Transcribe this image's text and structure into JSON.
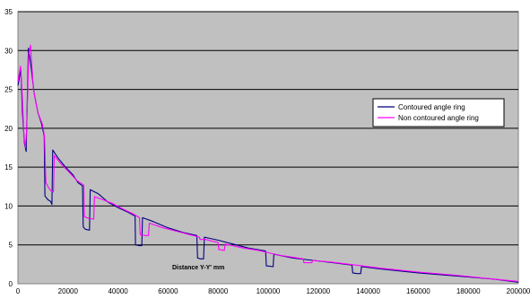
{
  "chart_data": {
    "type": "line",
    "title": "",
    "xlabel": "Distance Y-Y' mm",
    "ylabel": "",
    "xlim": [
      0,
      200000
    ],
    "ylim": [
      0,
      35
    ],
    "xticks": [
      0,
      20000,
      40000,
      60000,
      80000,
      100000,
      120000,
      140000,
      160000,
      180000,
      200000
    ],
    "yticks": [
      0,
      5,
      10,
      15,
      20,
      25,
      30,
      35
    ],
    "grid": true,
    "legend_position": "right",
    "series": [
      {
        "name": "Contoured angle ring",
        "color": "#000080",
        "points": [
          [
            0,
            25.5
          ],
          [
            1200,
            27.5
          ],
          [
            1800,
            22
          ],
          [
            2600,
            18
          ],
          [
            3300,
            17
          ],
          [
            3700,
            23
          ],
          [
            4200,
            30.3
          ],
          [
            5200,
            28
          ],
          [
            6500,
            24.5
          ],
          [
            8000,
            22
          ],
          [
            9500,
            20.5
          ],
          [
            10500,
            19
          ],
          [
            10800,
            11.3
          ],
          [
            12000,
            10.8
          ],
          [
            13000,
            10.6
          ],
          [
            13600,
            10.2
          ],
          [
            13900,
            17.2
          ],
          [
            16000,
            16.2
          ],
          [
            19000,
            15
          ],
          [
            22000,
            14
          ],
          [
            24000,
            13
          ],
          [
            25800,
            12.6
          ],
          [
            26100,
            7.3
          ],
          [
            27000,
            7
          ],
          [
            28600,
            6.9
          ],
          [
            28900,
            12.1
          ],
          [
            32000,
            11.6
          ],
          [
            36000,
            10.5
          ],
          [
            40000,
            9.8
          ],
          [
            44000,
            9.2
          ],
          [
            46800,
            8.7
          ],
          [
            47000,
            5
          ],
          [
            48500,
            4.9
          ],
          [
            49500,
            4.9
          ],
          [
            49800,
            8.5
          ],
          [
            54000,
            8
          ],
          [
            60000,
            7.2
          ],
          [
            66000,
            6.6
          ],
          [
            71500,
            6.2
          ],
          [
            71800,
            3.3
          ],
          [
            73000,
            3.2
          ],
          [
            74200,
            3.2
          ],
          [
            74500,
            6
          ],
          [
            80000,
            5.6
          ],
          [
            86000,
            5.1
          ],
          [
            92000,
            4.6
          ],
          [
            99000,
            4.2
          ],
          [
            99300,
            2.3
          ],
          [
            102000,
            2.2
          ],
          [
            102300,
            3.8
          ],
          [
            110000,
            3.3
          ],
          [
            118000,
            3
          ],
          [
            126000,
            2.7
          ],
          [
            133500,
            2.4
          ],
          [
            133800,
            1.4
          ],
          [
            135500,
            1.3
          ],
          [
            137000,
            1.3
          ],
          [
            137300,
            2.2
          ],
          [
            145000,
            1.9
          ],
          [
            160000,
            1.4
          ],
          [
            175000,
            1.0
          ],
          [
            190000,
            0.6
          ],
          [
            200000,
            0.2
          ]
        ]
      },
      {
        "name": "Non contoured angle ring",
        "color": "#ff00ff",
        "points": [
          [
            0,
            26
          ],
          [
            1000,
            28
          ],
          [
            1600,
            25
          ],
          [
            2400,
            19
          ],
          [
            3000,
            17.5
          ],
          [
            3500,
            20
          ],
          [
            4300,
            29.5
          ],
          [
            5000,
            30.7
          ],
          [
            6200,
            25
          ],
          [
            8000,
            22
          ],
          [
            9800,
            20.5
          ],
          [
            10600,
            19
          ],
          [
            11200,
            13
          ],
          [
            12000,
            12.5
          ],
          [
            13000,
            12
          ],
          [
            14200,
            11.8
          ],
          [
            14500,
            16.5
          ],
          [
            17000,
            15.5
          ],
          [
            20000,
            14.5
          ],
          [
            23500,
            13.3
          ],
          [
            26300,
            12.7
          ],
          [
            26600,
            8.6
          ],
          [
            28500,
            8.4
          ],
          [
            30300,
            8.3
          ],
          [
            30600,
            11.2
          ],
          [
            34000,
            10.8
          ],
          [
            38000,
            10.3
          ],
          [
            42000,
            9.6
          ],
          [
            46000,
            9
          ],
          [
            48600,
            8.5
          ],
          [
            48900,
            6.3
          ],
          [
            51000,
            6.2
          ],
          [
            52200,
            6.2
          ],
          [
            52500,
            7.8
          ],
          [
            58000,
            7.2
          ],
          [
            64000,
            6.7
          ],
          [
            70000,
            6.2
          ],
          [
            72500,
            6
          ],
          [
            72800,
            5.7
          ],
          [
            75000,
            5.7
          ],
          [
            80000,
            5.3
          ],
          [
            80300,
            4.4
          ],
          [
            82500,
            4.3
          ],
          [
            82800,
            5.1
          ],
          [
            90000,
            4.6
          ],
          [
            96000,
            4.3
          ],
          [
            100000,
            4
          ],
          [
            104000,
            3.7
          ],
          [
            110000,
            3.4
          ],
          [
            114000,
            3.2
          ],
          [
            114300,
            2.7
          ],
          [
            117500,
            2.7
          ],
          [
            117800,
            3
          ],
          [
            125000,
            2.8
          ],
          [
            135000,
            2.4
          ],
          [
            145000,
            2
          ],
          [
            160000,
            1.5
          ],
          [
            175000,
            1.1
          ],
          [
            190000,
            0.6
          ],
          [
            200000,
            0.3
          ]
        ]
      }
    ]
  },
  "colors": {
    "plot_background": "#c0c0c0",
    "gridline": "#000000",
    "axis": "#808080"
  }
}
